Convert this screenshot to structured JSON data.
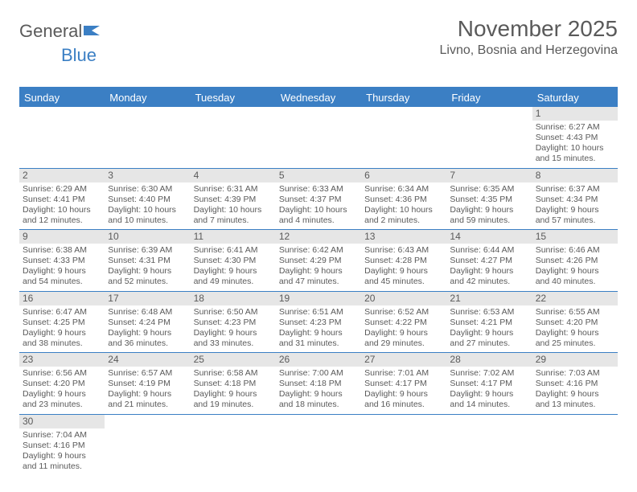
{
  "brand": {
    "part1": "General",
    "part2": "Blue"
  },
  "title": "November 2025",
  "location": "Livno, Bosnia and Herzegovina",
  "colors": {
    "accent": "#3b7fc4",
    "header_bg": "#3b7fc4",
    "header_text": "#ffffff",
    "daynum_bg": "#e6e6e6",
    "text": "#5a5a5a",
    "background": "#ffffff"
  },
  "day_headers": [
    "Sunday",
    "Monday",
    "Tuesday",
    "Wednesday",
    "Thursday",
    "Friday",
    "Saturday"
  ],
  "weeks": [
    [
      {
        "empty": true
      },
      {
        "empty": true
      },
      {
        "empty": true
      },
      {
        "empty": true
      },
      {
        "empty": true
      },
      {
        "empty": true
      },
      {
        "day": 1,
        "sunrise": "6:27 AM",
        "sunset": "4:43 PM",
        "daylight": "10 hours and 15 minutes."
      }
    ],
    [
      {
        "day": 2,
        "sunrise": "6:29 AM",
        "sunset": "4:41 PM",
        "daylight": "10 hours and 12 minutes."
      },
      {
        "day": 3,
        "sunrise": "6:30 AM",
        "sunset": "4:40 PM",
        "daylight": "10 hours and 10 minutes."
      },
      {
        "day": 4,
        "sunrise": "6:31 AM",
        "sunset": "4:39 PM",
        "daylight": "10 hours and 7 minutes."
      },
      {
        "day": 5,
        "sunrise": "6:33 AM",
        "sunset": "4:37 PM",
        "daylight": "10 hours and 4 minutes."
      },
      {
        "day": 6,
        "sunrise": "6:34 AM",
        "sunset": "4:36 PM",
        "daylight": "10 hours and 2 minutes."
      },
      {
        "day": 7,
        "sunrise": "6:35 AM",
        "sunset": "4:35 PM",
        "daylight": "9 hours and 59 minutes."
      },
      {
        "day": 8,
        "sunrise": "6:37 AM",
        "sunset": "4:34 PM",
        "daylight": "9 hours and 57 minutes."
      }
    ],
    [
      {
        "day": 9,
        "sunrise": "6:38 AM",
        "sunset": "4:33 PM",
        "daylight": "9 hours and 54 minutes."
      },
      {
        "day": 10,
        "sunrise": "6:39 AM",
        "sunset": "4:31 PM",
        "daylight": "9 hours and 52 minutes."
      },
      {
        "day": 11,
        "sunrise": "6:41 AM",
        "sunset": "4:30 PM",
        "daylight": "9 hours and 49 minutes."
      },
      {
        "day": 12,
        "sunrise": "6:42 AM",
        "sunset": "4:29 PM",
        "daylight": "9 hours and 47 minutes."
      },
      {
        "day": 13,
        "sunrise": "6:43 AM",
        "sunset": "4:28 PM",
        "daylight": "9 hours and 45 minutes."
      },
      {
        "day": 14,
        "sunrise": "6:44 AM",
        "sunset": "4:27 PM",
        "daylight": "9 hours and 42 minutes."
      },
      {
        "day": 15,
        "sunrise": "6:46 AM",
        "sunset": "4:26 PM",
        "daylight": "9 hours and 40 minutes."
      }
    ],
    [
      {
        "day": 16,
        "sunrise": "6:47 AM",
        "sunset": "4:25 PM",
        "daylight": "9 hours and 38 minutes."
      },
      {
        "day": 17,
        "sunrise": "6:48 AM",
        "sunset": "4:24 PM",
        "daylight": "9 hours and 36 minutes."
      },
      {
        "day": 18,
        "sunrise": "6:50 AM",
        "sunset": "4:23 PM",
        "daylight": "9 hours and 33 minutes."
      },
      {
        "day": 19,
        "sunrise": "6:51 AM",
        "sunset": "4:23 PM",
        "daylight": "9 hours and 31 minutes."
      },
      {
        "day": 20,
        "sunrise": "6:52 AM",
        "sunset": "4:22 PM",
        "daylight": "9 hours and 29 minutes."
      },
      {
        "day": 21,
        "sunrise": "6:53 AM",
        "sunset": "4:21 PM",
        "daylight": "9 hours and 27 minutes."
      },
      {
        "day": 22,
        "sunrise": "6:55 AM",
        "sunset": "4:20 PM",
        "daylight": "9 hours and 25 minutes."
      }
    ],
    [
      {
        "day": 23,
        "sunrise": "6:56 AM",
        "sunset": "4:20 PM",
        "daylight": "9 hours and 23 minutes."
      },
      {
        "day": 24,
        "sunrise": "6:57 AM",
        "sunset": "4:19 PM",
        "daylight": "9 hours and 21 minutes."
      },
      {
        "day": 25,
        "sunrise": "6:58 AM",
        "sunset": "4:18 PM",
        "daylight": "9 hours and 19 minutes."
      },
      {
        "day": 26,
        "sunrise": "7:00 AM",
        "sunset": "4:18 PM",
        "daylight": "9 hours and 18 minutes."
      },
      {
        "day": 27,
        "sunrise": "7:01 AM",
        "sunset": "4:17 PM",
        "daylight": "9 hours and 16 minutes."
      },
      {
        "day": 28,
        "sunrise": "7:02 AM",
        "sunset": "4:17 PM",
        "daylight": "9 hours and 14 minutes."
      },
      {
        "day": 29,
        "sunrise": "7:03 AM",
        "sunset": "4:16 PM",
        "daylight": "9 hours and 13 minutes."
      }
    ],
    [
      {
        "day": 30,
        "sunrise": "7:04 AM",
        "sunset": "4:16 PM",
        "daylight": "9 hours and 11 minutes."
      },
      {
        "empty": true
      },
      {
        "empty": true
      },
      {
        "empty": true
      },
      {
        "empty": true
      },
      {
        "empty": true
      },
      {
        "empty": true
      }
    ]
  ],
  "labels": {
    "sunrise": "Sunrise: ",
    "sunset": "Sunset: ",
    "daylight": "Daylight: "
  }
}
